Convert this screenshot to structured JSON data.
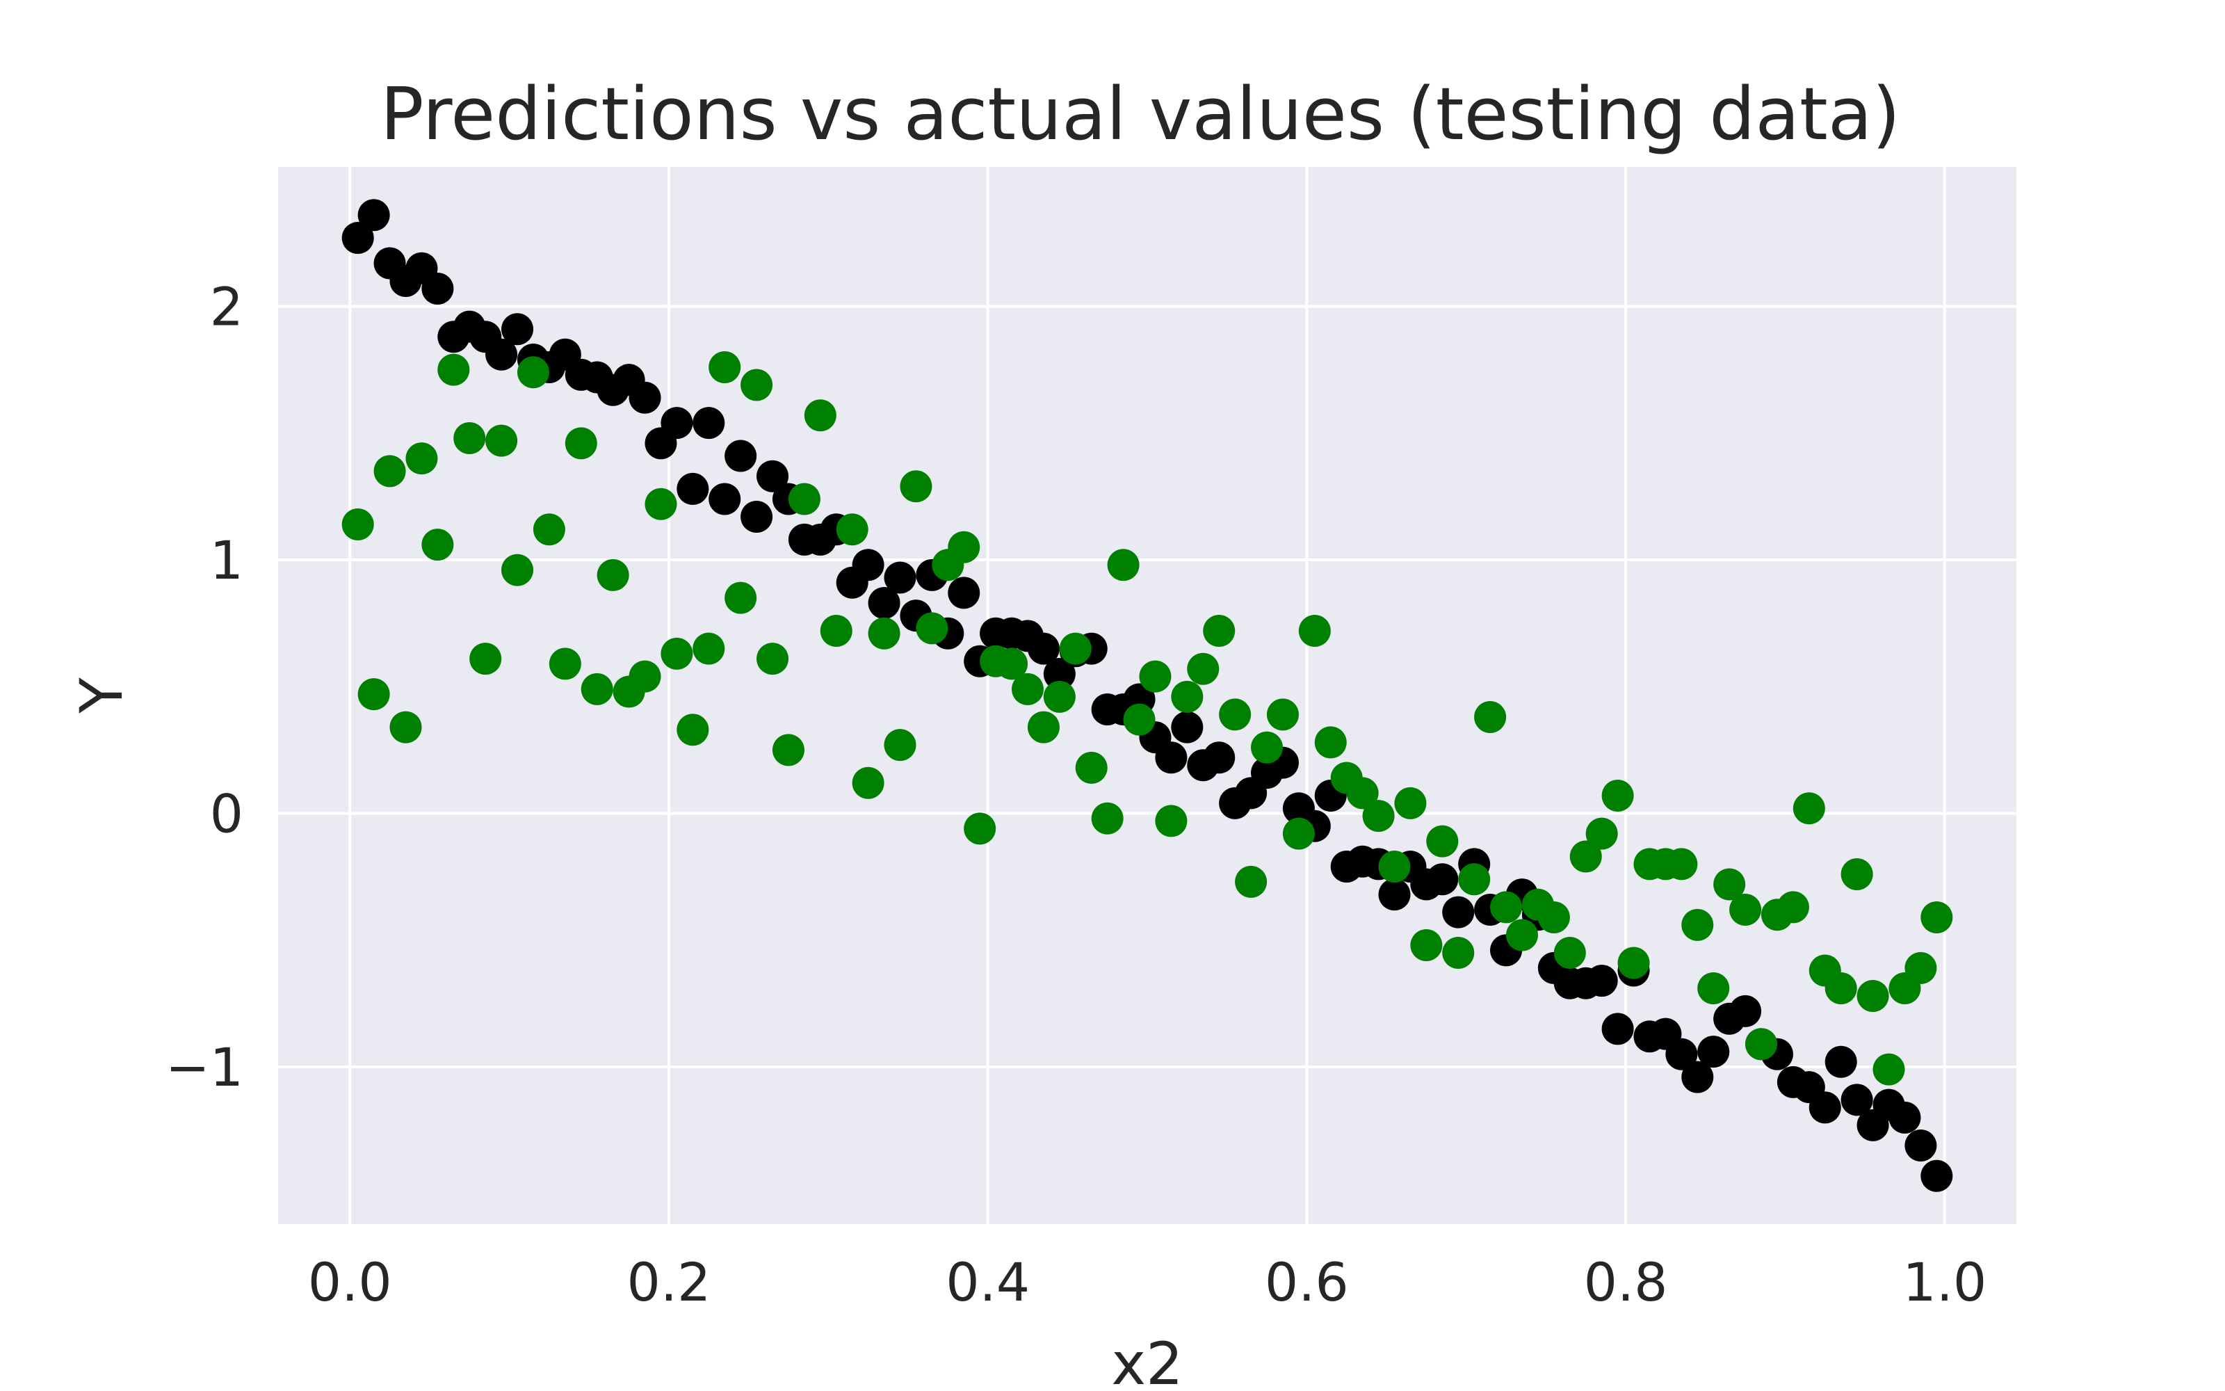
{
  "chart_data": {
    "type": "scatter",
    "title": "Predictions vs actual values (testing data)",
    "xlabel": "x2",
    "ylabel": "Y",
    "xlim": [
      -0.045,
      1.045
    ],
    "ylim": [
      -1.62,
      2.55
    ],
    "xticks": [
      0.0,
      0.2,
      0.4,
      0.6,
      0.8,
      1.0
    ],
    "xtick_labels": [
      "0.0",
      "0.2",
      "0.4",
      "0.6",
      "0.8",
      "1.0"
    ],
    "yticks": [
      -1,
      0,
      1,
      2
    ],
    "ytick_labels": [
      "−1",
      "0",
      "1",
      "2"
    ],
    "grid": true,
    "background": "#eaeaf2",
    "series": [
      {
        "color": "#000000",
        "points": [
          [
            0.005,
            2.27
          ],
          [
            0.015,
            2.36
          ],
          [
            0.025,
            2.17
          ],
          [
            0.035,
            2.1
          ],
          [
            0.045,
            2.15
          ],
          [
            0.055,
            2.07
          ],
          [
            0.065,
            1.88
          ],
          [
            0.075,
            1.92
          ],
          [
            0.085,
            1.88
          ],
          [
            0.095,
            1.81
          ],
          [
            0.105,
            1.91
          ],
          [
            0.115,
            1.79
          ],
          [
            0.125,
            1.76
          ],
          [
            0.135,
            1.81
          ],
          [
            0.145,
            1.73
          ],
          [
            0.155,
            1.72
          ],
          [
            0.165,
            1.67
          ],
          [
            0.175,
            1.71
          ],
          [
            0.185,
            1.64
          ],
          [
            0.195,
            1.46
          ],
          [
            0.205,
            1.54
          ],
          [
            0.215,
            1.28
          ],
          [
            0.225,
            1.54
          ],
          [
            0.235,
            1.24
          ],
          [
            0.245,
            1.41
          ],
          [
            0.255,
            1.17
          ],
          [
            0.265,
            1.33
          ],
          [
            0.275,
            1.24
          ],
          [
            0.285,
            1.08
          ],
          [
            0.295,
            1.08
          ],
          [
            0.305,
            1.12
          ],
          [
            0.315,
            0.91
          ],
          [
            0.325,
            0.98
          ],
          [
            0.335,
            0.83
          ],
          [
            0.345,
            0.93
          ],
          [
            0.355,
            0.78
          ],
          [
            0.365,
            0.94
          ],
          [
            0.375,
            0.71
          ],
          [
            0.385,
            0.87
          ],
          [
            0.395,
            0.6
          ],
          [
            0.405,
            0.71
          ],
          [
            0.415,
            0.71
          ],
          [
            0.425,
            0.7
          ],
          [
            0.435,
            0.65
          ],
          [
            0.445,
            0.55
          ],
          [
            0.455,
            0.64
          ],
          [
            0.465,
            0.65
          ],
          [
            0.475,
            0.41
          ],
          [
            0.485,
            0.41
          ],
          [
            0.495,
            0.45
          ],
          [
            0.505,
            0.3
          ],
          [
            0.515,
            0.22
          ],
          [
            0.525,
            0.34
          ],
          [
            0.535,
            0.19
          ],
          [
            0.545,
            0.22
          ],
          [
            0.555,
            0.04
          ],
          [
            0.565,
            0.08
          ],
          [
            0.575,
            0.16
          ],
          [
            0.585,
            0.2
          ],
          [
            0.595,
            0.02
          ],
          [
            0.605,
            -0.05
          ],
          [
            0.615,
            0.07
          ],
          [
            0.625,
            -0.21
          ],
          [
            0.635,
            -0.19
          ],
          [
            0.645,
            -0.2
          ],
          [
            0.655,
            -0.32
          ],
          [
            0.665,
            -0.21
          ],
          [
            0.675,
            -0.28
          ],
          [
            0.685,
            -0.26
          ],
          [
            0.695,
            -0.39
          ],
          [
            0.705,
            -0.2
          ],
          [
            0.715,
            -0.38
          ],
          [
            0.725,
            -0.54
          ],
          [
            0.735,
            -0.32
          ],
          [
            0.745,
            -0.4
          ],
          [
            0.755,
            -0.61
          ],
          [
            0.765,
            -0.67
          ],
          [
            0.775,
            -0.67
          ],
          [
            0.785,
            -0.66
          ],
          [
            0.795,
            -0.85
          ],
          [
            0.805,
            -0.62
          ],
          [
            0.815,
            -0.88
          ],
          [
            0.825,
            -0.87
          ],
          [
            0.835,
            -0.95
          ],
          [
            0.845,
            -1.04
          ],
          [
            0.855,
            -0.94
          ],
          [
            0.865,
            -0.81
          ],
          [
            0.875,
            -0.78
          ],
          [
            0.885,
            -0.91
          ],
          [
            0.895,
            -0.95
          ],
          [
            0.905,
            -1.06
          ],
          [
            0.915,
            -1.08
          ],
          [
            0.925,
            -1.16
          ],
          [
            0.935,
            -0.98
          ],
          [
            0.945,
            -1.13
          ],
          [
            0.955,
            -1.23
          ],
          [
            0.965,
            -1.15
          ],
          [
            0.975,
            -1.2
          ],
          [
            0.985,
            -1.31
          ],
          [
            0.995,
            -1.43
          ]
        ]
      },
      {
        "color": "#008000",
        "points": [
          [
            0.005,
            1.14
          ],
          [
            0.015,
            0.47
          ],
          [
            0.025,
            1.35
          ],
          [
            0.035,
            0.34
          ],
          [
            0.045,
            1.4
          ],
          [
            0.055,
            1.06
          ],
          [
            0.065,
            1.75
          ],
          [
            0.075,
            1.48
          ],
          [
            0.085,
            0.61
          ],
          [
            0.095,
            1.47
          ],
          [
            0.105,
            0.96
          ],
          [
            0.115,
            1.74
          ],
          [
            0.125,
            1.12
          ],
          [
            0.135,
            0.59
          ],
          [
            0.145,
            1.46
          ],
          [
            0.155,
            0.49
          ],
          [
            0.165,
            0.94
          ],
          [
            0.175,
            0.48
          ],
          [
            0.185,
            0.54
          ],
          [
            0.195,
            1.22
          ],
          [
            0.205,
            0.63
          ],
          [
            0.215,
            0.33
          ],
          [
            0.225,
            0.65
          ],
          [
            0.235,
            1.76
          ],
          [
            0.245,
            0.85
          ],
          [
            0.255,
            1.69
          ],
          [
            0.265,
            0.61
          ],
          [
            0.275,
            0.25
          ],
          [
            0.285,
            1.24
          ],
          [
            0.295,
            1.57
          ],
          [
            0.305,
            0.72
          ],
          [
            0.315,
            1.12
          ],
          [
            0.325,
            0.12
          ],
          [
            0.335,
            0.71
          ],
          [
            0.345,
            0.27
          ],
          [
            0.355,
            1.29
          ],
          [
            0.365,
            0.73
          ],
          [
            0.375,
            0.98
          ],
          [
            0.385,
            1.05
          ],
          [
            0.395,
            -0.06
          ],
          [
            0.405,
            0.6
          ],
          [
            0.415,
            0.59
          ],
          [
            0.425,
            0.49
          ],
          [
            0.435,
            0.34
          ],
          [
            0.445,
            0.46
          ],
          [
            0.455,
            0.65
          ],
          [
            0.465,
            0.18
          ],
          [
            0.475,
            -0.02
          ],
          [
            0.485,
            0.98
          ],
          [
            0.495,
            0.37
          ],
          [
            0.505,
            0.54
          ],
          [
            0.515,
            -0.03
          ],
          [
            0.525,
            0.46
          ],
          [
            0.535,
            0.57
          ],
          [
            0.545,
            0.72
          ],
          [
            0.555,
            0.39
          ],
          [
            0.565,
            -0.27
          ],
          [
            0.575,
            0.26
          ],
          [
            0.585,
            0.39
          ],
          [
            0.595,
            -0.08
          ],
          [
            0.605,
            0.72
          ],
          [
            0.615,
            0.28
          ],
          [
            0.625,
            0.14
          ],
          [
            0.635,
            0.08
          ],
          [
            0.645,
            -0.01
          ],
          [
            0.655,
            -0.21
          ],
          [
            0.665,
            0.04
          ],
          [
            0.675,
            -0.52
          ],
          [
            0.685,
            -0.11
          ],
          [
            0.695,
            -0.55
          ],
          [
            0.705,
            -0.26
          ],
          [
            0.715,
            0.38
          ],
          [
            0.725,
            -0.37
          ],
          [
            0.735,
            -0.48
          ],
          [
            0.745,
            -0.36
          ],
          [
            0.755,
            -0.41
          ],
          [
            0.765,
            -0.55
          ],
          [
            0.775,
            -0.17
          ],
          [
            0.785,
            -0.08
          ],
          [
            0.795,
            0.07
          ],
          [
            0.805,
            -0.59
          ],
          [
            0.815,
            -0.2
          ],
          [
            0.825,
            -0.2
          ],
          [
            0.835,
            -0.2
          ],
          [
            0.845,
            -0.44
          ],
          [
            0.855,
            -0.69
          ],
          [
            0.865,
            -0.28
          ],
          [
            0.875,
            -0.38
          ],
          [
            0.885,
            -0.91
          ],
          [
            0.895,
            -0.4
          ],
          [
            0.905,
            -0.37
          ],
          [
            0.915,
            0.02
          ],
          [
            0.925,
            -0.62
          ],
          [
            0.935,
            -0.69
          ],
          [
            0.945,
            -0.24
          ],
          [
            0.955,
            -0.72
          ],
          [
            0.965,
            -1.01
          ],
          [
            0.975,
            -0.69
          ],
          [
            0.985,
            -0.61
          ],
          [
            0.995,
            -0.41
          ]
        ]
      }
    ]
  }
}
